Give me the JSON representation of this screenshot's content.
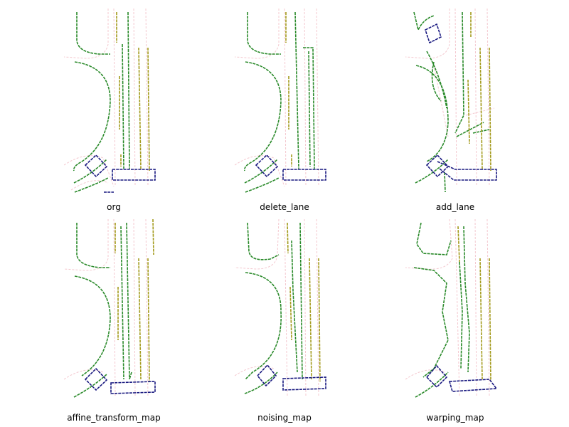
{
  "panels": [
    {
      "id": "org",
      "label": "org"
    },
    {
      "id": "delete_lane",
      "label": "delete_lane"
    },
    {
      "id": "add_lane",
      "label": "add_lane"
    },
    {
      "id": "affine_transform_map",
      "label": "affine_transform_map"
    },
    {
      "id": "noising_map",
      "label": "noising_map"
    },
    {
      "id": "warping_map",
      "label": "warping_map"
    }
  ],
  "legend_colors": {
    "lane_boundary": "#2a8a2a",
    "lane_divider": "#a39a1c",
    "crosswalk": "#1a1a80",
    "centerline": "#f4c8cf"
  }
}
